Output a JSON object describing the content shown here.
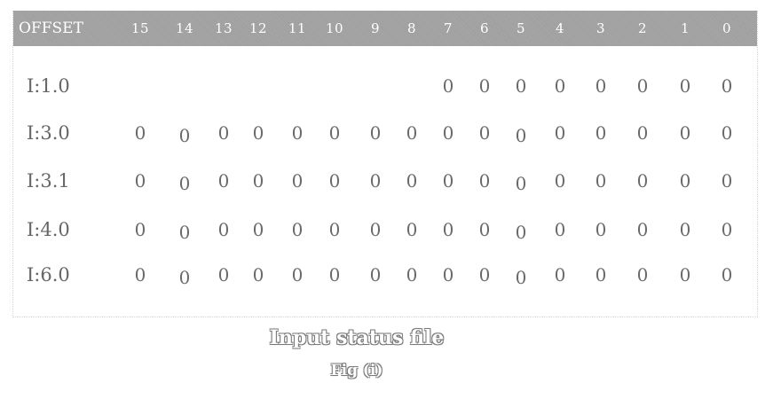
{
  "table": {
    "header": {
      "offset_label": "OFFSET",
      "bits": [
        "15",
        "14",
        "13",
        "12",
        "11",
        "10",
        "9",
        "8",
        "7",
        "6",
        "5",
        "4",
        "3",
        "2",
        "1",
        "0"
      ]
    },
    "rows": [
      {
        "label": "I:1.0",
        "bits": [
          "",
          "",
          "",
          "",
          "",
          "",
          "",
          "",
          "0",
          "0",
          "0",
          "0",
          "0",
          "0",
          "0",
          "0"
        ]
      },
      {
        "label": "I:3.0",
        "bits": [
          "0",
          "0",
          "0",
          "0",
          "0",
          "0",
          "0",
          "0",
          "0",
          "0",
          "0",
          "0",
          "0",
          "0",
          "0",
          "0"
        ]
      },
      {
        "label": "I:3.1",
        "bits": [
          "0",
          "0",
          "0",
          "0",
          "0",
          "0",
          "0",
          "0",
          "0",
          "0",
          "0",
          "0",
          "0",
          "0",
          "0",
          "0"
        ]
      },
      {
        "label": "I:4.0",
        "bits": [
          "0",
          "0",
          "0",
          "0",
          "0",
          "0",
          "0",
          "0",
          "0",
          "0",
          "0",
          "0",
          "0",
          "0",
          "0",
          "0"
        ]
      },
      {
        "label": "I:6.0",
        "bits": [
          "0",
          "0",
          "0",
          "0",
          "0",
          "0",
          "0",
          "0",
          "0",
          "0",
          "0",
          "0",
          "0",
          "0",
          "0",
          "0"
        ]
      }
    ]
  },
  "caption": {
    "title": "Input status file",
    "figure": "Fig (i)"
  },
  "colors": {
    "header_bg": "#a3a3a3",
    "header_text": "#ffffff",
    "cell_text": "#6a6a6a"
  }
}
